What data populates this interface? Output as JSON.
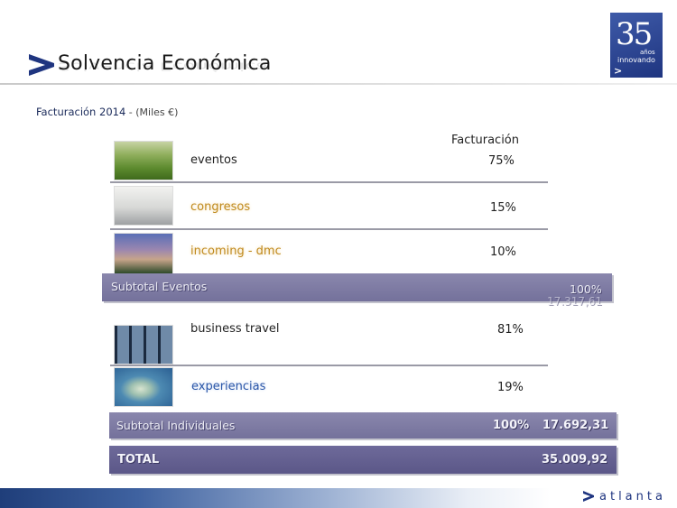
{
  "header": {
    "title": "Solvencia Económica",
    "logo": {
      "number": "35",
      "years": "años",
      "tagline": "innovando",
      "arrow": ">"
    }
  },
  "subtitle": {
    "main": "Facturación 2014",
    "units": " - (Miles €)"
  },
  "table": {
    "column_header": "Facturación",
    "group_eventos": {
      "rows": [
        {
          "label": "eventos",
          "percent": "75%"
        },
        {
          "label": "congresos",
          "percent": "15%"
        },
        {
          "label": "incoming - dmc",
          "percent": "10%"
        }
      ],
      "subtotal": {
        "label": "Subtotal Eventos",
        "percent": "100%",
        "amount": "17.317,61"
      }
    },
    "group_individuales": {
      "rows": [
        {
          "label": "business travel",
          "percent": "81%"
        },
        {
          "label": "experiencias",
          "percent": "19%"
        }
      ],
      "subtotal": {
        "label": "Subtotal Individuales",
        "percent": "100%",
        "amount": "17.692,31"
      }
    },
    "total": {
      "label": "TOTAL",
      "amount": "35.009,92"
    }
  },
  "footer": {
    "brand": "atlanta"
  },
  "colors": {
    "navy": "#1f3580",
    "bar": "#7f7ca6",
    "gold": "#c08a1e",
    "blue": "#2a56a8"
  }
}
